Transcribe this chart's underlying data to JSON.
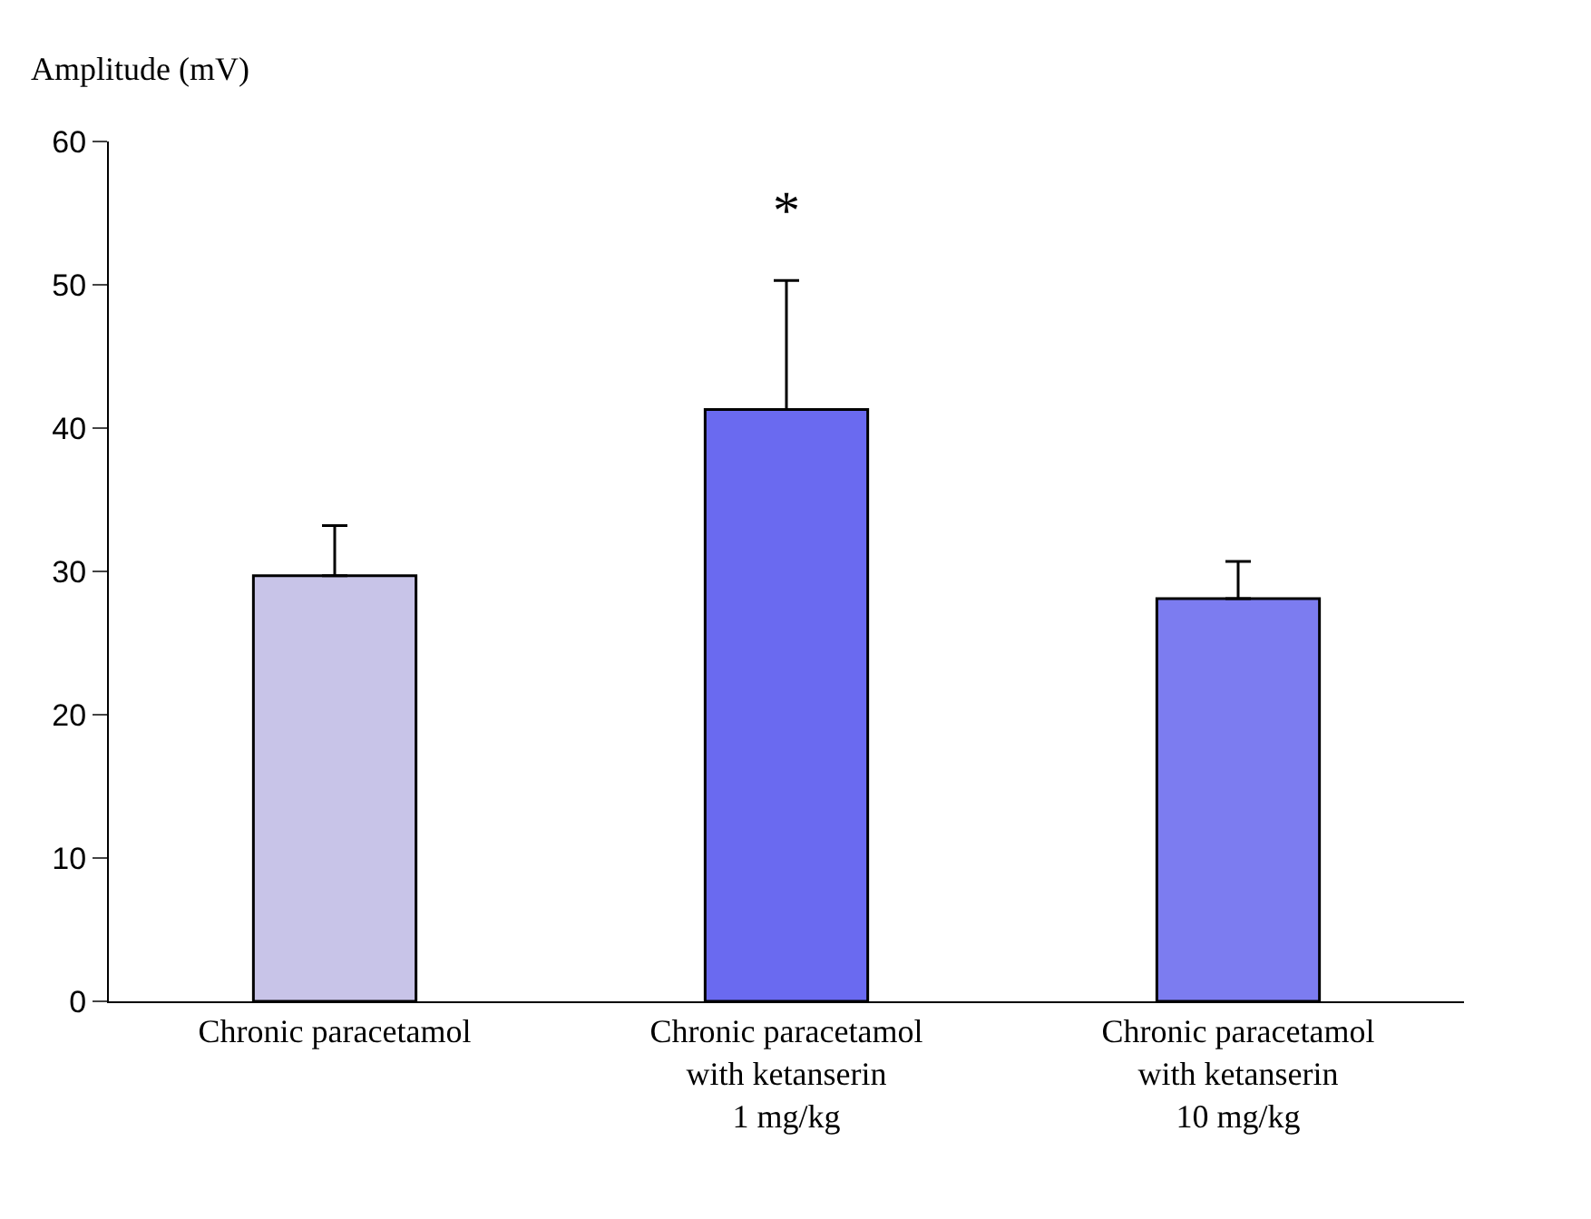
{
  "chart_data": {
    "type": "bar",
    "ylabel": "Amplitude (mV)",
    "categories": [
      "Chronic paracetamol",
      "Chronic paracetamol\nwith ketanserin\n1 mg/kg",
      "Chronic paracetamol\nwith ketanserin\n10 mg/kg"
    ],
    "values": [
      29.7,
      41.3,
      28.1
    ],
    "errors": [
      [
        29.7,
        33.2
      ],
      [
        41.3,
        50.3
      ],
      [
        28.1,
        30.7
      ]
    ],
    "colors": [
      "#c8c4e8",
      "#6a6af0",
      "#7c7cf0"
    ],
    "ylim": [
      0,
      60
    ],
    "yticks": [
      0,
      10,
      20,
      30,
      40,
      50,
      60
    ],
    "annotations": [
      "*"
    ]
  }
}
